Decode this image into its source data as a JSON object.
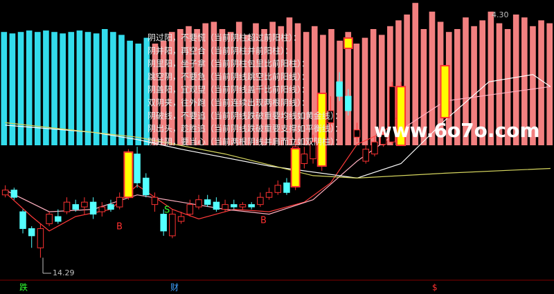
{
  "chart_data": {
    "type": "candlestick",
    "ylim": [
      13.5,
      25
    ],
    "xlim": [
      -0.6,
      62.4
    ],
    "up_color": "#ff3232",
    "down_color": "#54ffff",
    "open": [
      16.9,
      17.1,
      16.2,
      15.5,
      14.7,
      15.7,
      16.0,
      16.2,
      16.5,
      16.4,
      16.6,
      16.2,
      16.5,
      16.4,
      16.8,
      18.6,
      17.6,
      16.5,
      16.1,
      15.2,
      15.8,
      16.1,
      16.4,
      16.7,
      16.6,
      16.3,
      16.5,
      16.4,
      16.5,
      16.5,
      16.8,
      17.0,
      17.4,
      17.3,
      18.2,
      18.4,
      18.1,
      19.9,
      21.6,
      21.0,
      19.3,
      18.3,
      18.6,
      19.0,
      19.1,
      19.1
    ],
    "high": [
      17.3,
      17.2,
      16.3,
      15.6,
      15.7,
      16.2,
      16.3,
      16.8,
      16.7,
      16.8,
      16.8,
      16.6,
      16.7,
      17.0,
      18.8,
      18.9,
      17.8,
      17.0,
      16.3,
      16.3,
      16.2,
      16.7,
      16.9,
      16.9,
      16.8,
      16.7,
      16.7,
      16.6,
      16.6,
      17.0,
      17.2,
      17.5,
      17.6,
      19.1,
      18.9,
      19.4,
      20.3,
      21.0,
      22.0,
      21.3,
      19.9,
      19.0,
      19.3,
      19.6,
      21.6,
      21.6
    ],
    "low": [
      16.8,
      16.7,
      15.3,
      14.7,
      14.29,
      15.6,
      15.7,
      16.1,
      16.2,
      16.1,
      15.9,
      16.0,
      16.2,
      16.3,
      16.7,
      17.2,
      16.8,
      16.2,
      15.2,
      15.1,
      15.7,
      16.0,
      16.3,
      16.4,
      16.2,
      16.2,
      16.3,
      16.3,
      16.3,
      16.4,
      16.7,
      16.9,
      16.9,
      17.1,
      18.0,
      18.2,
      17.9,
      19.7,
      20.8,
      20.2,
      19.1,
      18.2,
      18.5,
      18.9,
      19.0,
      19.0
    ],
    "close": [
      17.1,
      16.8,
      15.5,
      15.2,
      15.5,
      16.1,
      15.8,
      16.6,
      16.3,
      16.6,
      16.1,
      16.4,
      16.3,
      16.8,
      18.6,
      17.4,
      16.9,
      16.8,
      15.4,
      16.1,
      16.0,
      16.5,
      16.7,
      16.5,
      16.3,
      16.5,
      16.4,
      16.5,
      16.4,
      16.8,
      17.0,
      17.3,
      17.0,
      18.9,
      18.6,
      19.1,
      20.0,
      20.4,
      21.0,
      20.4,
      19.6,
      18.8,
      19.1,
      19.4,
      21.4,
      21.4
    ],
    "signals": {
      "color": "#ffff00",
      "border": "#ff3232",
      "x": [
        14,
        33,
        36,
        39,
        45,
        50
      ],
      "low": [
        16.8,
        17.24,
        18.1,
        22.99,
        18.96,
        20.11
      ],
      "high": [
        18.68,
        18.82,
        21.12,
        23.42,
        21.4,
        22.27
      ]
    },
    "series": [
      {
        "color": "#ff3a3a",
        "x": [
          0,
          3,
          5,
          8,
          12,
          15,
          19,
          22,
          26,
          30,
          34,
          37,
          40,
          43,
          45
        ],
        "values": [
          17.0,
          16.0,
          15.4,
          16.0,
          16.3,
          17.3,
          16.3,
          15.9,
          16.3,
          16.2,
          16.6,
          17.4,
          19.0,
          19.5,
          20.3
        ]
      },
      {
        "color": "#ffb0c0",
        "x": [
          0,
          5,
          10,
          15,
          20,
          25,
          30,
          35,
          40,
          45,
          50,
          62
        ],
        "values": [
          17.1,
          16.2,
          16.3,
          16.9,
          16.6,
          16.3,
          16.1,
          16.7,
          18.3,
          19.6,
          20.8,
          21.4
        ]
      },
      {
        "color": "#ffffff",
        "x": [
          0,
          10,
          15,
          20,
          30,
          40,
          45,
          50,
          55,
          60,
          62
        ],
        "values": [
          19.8,
          19.5,
          19.2,
          18.8,
          18.1,
          17.6,
          18.2,
          20.0,
          21.6,
          21.9,
          21.4
        ]
      },
      {
        "color": "#d8d860",
        "x": [
          0,
          15,
          25,
          35,
          40,
          50,
          62
        ],
        "values": [
          19.9,
          19.3,
          18.6,
          17.7,
          17.6,
          17.8,
          18.0
        ]
      }
    ],
    "indicator": {
      "ylim": [
        0,
        100
      ],
      "series": [
        {
          "color": "#33dcec",
          "values": [
            78,
            77,
            78,
            79,
            78,
            79,
            78,
            77,
            78,
            79,
            78,
            77,
            80,
            78,
            76,
            72,
            70,
            74,
            null,
            null,
            null,
            null,
            null,
            null,
            null,
            null,
            null,
            null,
            null,
            null,
            null,
            null,
            null,
            null,
            null,
            null,
            null,
            null,
            null,
            null,
            null,
            null,
            null,
            null,
            null,
            null,
            null,
            null,
            null,
            null,
            null,
            null,
            null,
            null,
            null,
            null,
            null,
            null,
            null,
            null,
            null,
            null,
            null,
            null,
            null,
            null
          ]
        },
        {
          "color": "#f28080",
          "values": [
            null,
            null,
            null,
            null,
            null,
            null,
            null,
            null,
            null,
            null,
            null,
            null,
            null,
            null,
            null,
            null,
            null,
            null,
            70,
            72,
            78,
            80,
            82,
            80,
            84,
            85,
            80,
            78,
            85,
            76,
            84,
            80,
            85,
            82,
            88,
            84,
            78,
            82,
            76,
            80,
            72,
            78,
            70,
            74,
            80,
            76,
            82,
            86,
            90,
            98,
            80,
            92,
            85,
            78,
            80,
            88,
            82,
            86,
            92,
            84,
            80,
            90,
            88,
            82,
            86,
            84
          ]
        }
      ]
    },
    "notes": [
      "阴过阳，不要慌（当前阴柱超过前阳柱）：",
      "阴并阳，再空合（当前阴柱并前阳柱）：",
      "阴里阳，坐子拿（当前阴柱包里比前阳柱）：",
      "跳空阴，不要急（当前阴线跳空比前阳线）：",
      "阴盖阳，宜观望（当前阴线盖千比前阳线）：",
      "双阴夹，往外跑（当前连续出现两根阴线）：",
      "阴破线，不要追（当前阴线跌破重要均线如黄金线）：",
      "阴出头，趁胜追（当前阴线跌破重要支撑如平衡线）：",
      "阴并阴，要当心（当前两根阴线并肩而立如双阴柱）："
    ],
    "annotations": [
      "B",
      "B",
      "S",
      "14.29",
      "4.30",
      "www.6o7o.com"
    ],
    "footer": [
      "跌",
      "财",
      "$"
    ]
  }
}
